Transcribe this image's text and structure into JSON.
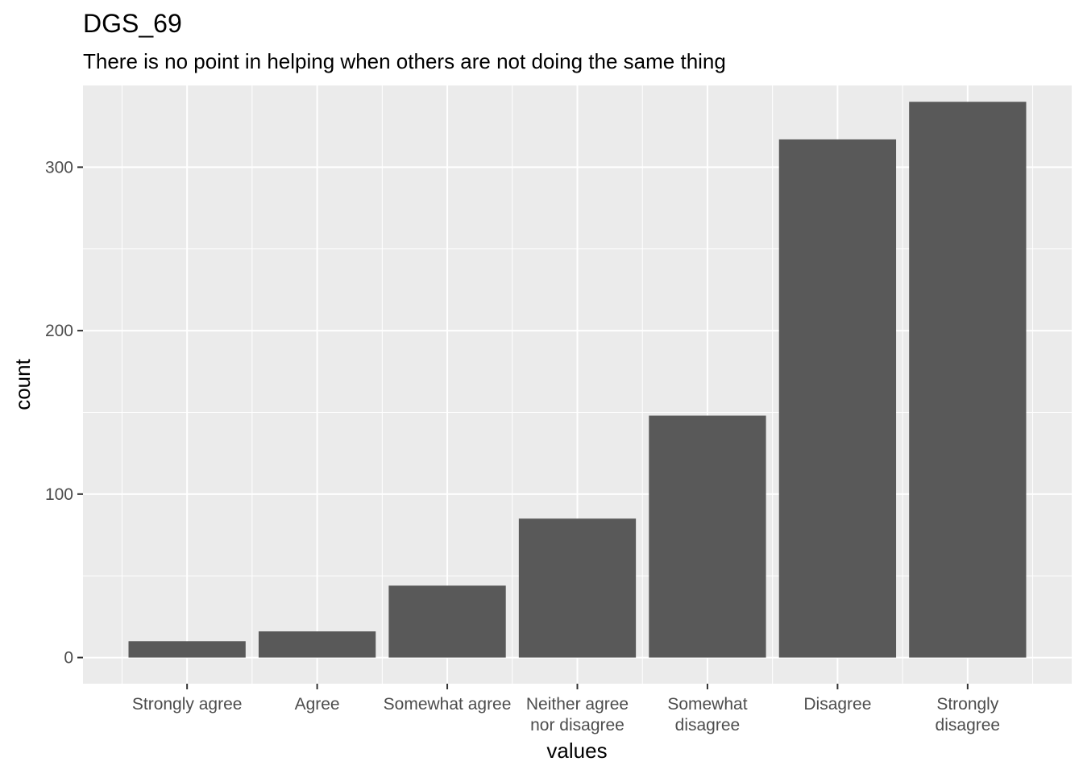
{
  "chart_data": {
    "type": "bar",
    "title": "DGS_69",
    "subtitle": "There is no point in helping when others are not doing the same thing",
    "xlabel": "values",
    "ylabel": "count",
    "categories": [
      [
        "Strongly agree"
      ],
      [
        "Agree"
      ],
      [
        "Somewhat agree"
      ],
      [
        "Neither agree",
        "nor disagree"
      ],
      [
        "Somewhat",
        "disagree"
      ],
      [
        "Disagree"
      ],
      [
        "Strongly",
        "disagree"
      ]
    ],
    "values": [
      10,
      16,
      44,
      85,
      148,
      317,
      340
    ],
    "ylim": [
      -16,
      350
    ],
    "yticks": [
      0,
      100,
      200,
      300
    ],
    "grid": true,
    "colors": {
      "panel": "#ebebeb",
      "grid": "#ffffff",
      "bar": "#595959",
      "tick": "#333333"
    }
  }
}
